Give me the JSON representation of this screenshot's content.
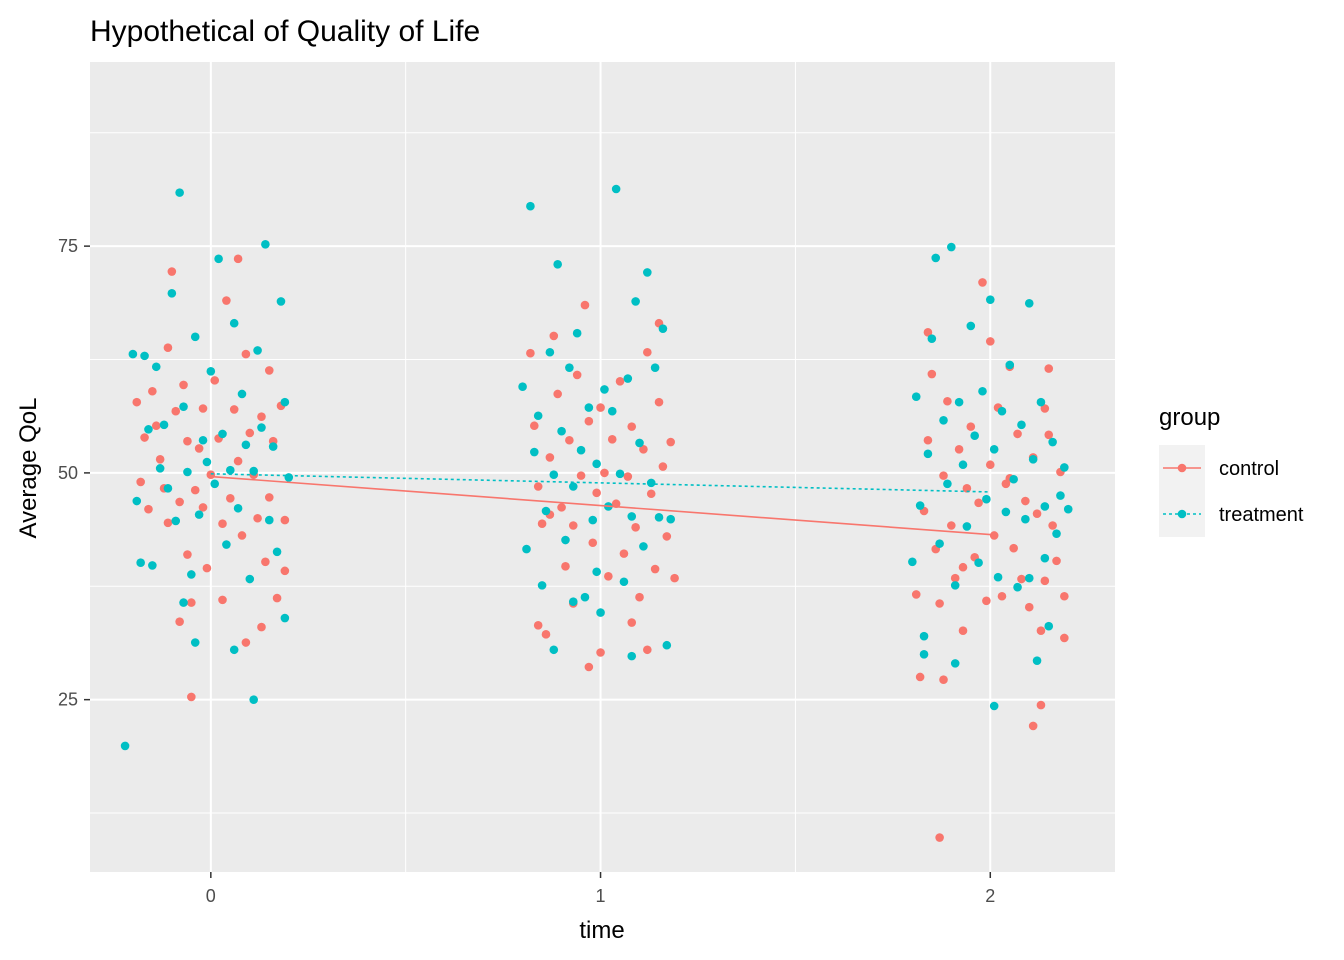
{
  "chart_data": {
    "type": "scatter",
    "title": "Hypothetical of Quality of Life",
    "xlabel": "time",
    "ylabel": "Average QoL",
    "xlim": [
      -0.31,
      2.32
    ],
    "ylim": [
      6,
      95.3
    ],
    "x_ticks": [
      0,
      1,
      2
    ],
    "x_tick_labels": [
      "0",
      "1",
      "2"
    ],
    "y_ticks": [
      25,
      50,
      75
    ],
    "y_tick_labels": [
      "25",
      "50",
      "75"
    ],
    "grid": true,
    "legend": {
      "title": "group",
      "position": "right"
    },
    "series": [
      {
        "name": "control",
        "color": "#F8766D",
        "line_style": "solid",
        "trend": {
          "x": [
            0,
            1,
            2
          ],
          "y": [
            49.6,
            46.4,
            43.2
          ]
        },
        "points": [
          [
            -0.19,
            57.8
          ],
          [
            -0.18,
            49
          ],
          [
            -0.17,
            53.9
          ],
          [
            -0.16,
            46
          ],
          [
            -0.15,
            59
          ],
          [
            -0.14,
            55.2
          ],
          [
            -0.13,
            51.5
          ],
          [
            -0.12,
            48.3
          ],
          [
            -0.11,
            44.5
          ],
          [
            -0.11,
            63.8
          ],
          [
            -0.1,
            72.2
          ],
          [
            -0.09,
            56.8
          ],
          [
            -0.08,
            46.8
          ],
          [
            -0.07,
            59.7
          ],
          [
            -0.06,
            53.5
          ],
          [
            -0.06,
            41
          ],
          [
            -0.05,
            35.7
          ],
          [
            -0.04,
            48.1
          ],
          [
            -0.03,
            52.7
          ],
          [
            -0.02,
            57.1
          ],
          [
            -0.02,
            46.2
          ],
          [
            -0.01,
            39.5
          ],
          [
            0,
            49.8
          ],
          [
            0.01,
            60.2
          ],
          [
            0.02,
            53.8
          ],
          [
            0.03,
            44.4
          ],
          [
            0.03,
            36
          ],
          [
            0.04,
            69
          ],
          [
            0.05,
            47.2
          ],
          [
            0.06,
            57
          ],
          [
            0.07,
            51.3
          ],
          [
            0.07,
            73.6
          ],
          [
            0.08,
            43.1
          ],
          [
            0.09,
            63.1
          ],
          [
            0.1,
            54.4
          ],
          [
            0.11,
            49.8
          ],
          [
            0.12,
            45
          ],
          [
            0.13,
            56.2
          ],
          [
            0.14,
            40.2
          ],
          [
            0.15,
            61.3
          ],
          [
            0.15,
            47.3
          ],
          [
            0.16,
            53.5
          ],
          [
            0.17,
            36.2
          ],
          [
            0.18,
            57.4
          ],
          [
            0.19,
            44.8
          ],
          [
            -0.05,
            25.3
          ],
          [
            -0.08,
            33.6
          ],
          [
            0.09,
            31.3
          ],
          [
            0.13,
            33
          ],
          [
            0.19,
            39.2
          ],
          [
            0.82,
            63.2
          ],
          [
            0.83,
            55.2
          ],
          [
            0.84,
            48.5
          ],
          [
            0.85,
            44.4
          ],
          [
            0.86,
            32.2
          ],
          [
            0.87,
            51.7
          ],
          [
            0.88,
            65.1
          ],
          [
            0.89,
            58.7
          ],
          [
            0.9,
            46.2
          ],
          [
            0.91,
            39.7
          ],
          [
            0.92,
            53.6
          ],
          [
            0.93,
            44.2
          ],
          [
            0.94,
            60.8
          ],
          [
            0.95,
            49.7
          ],
          [
            0.96,
            68.5
          ],
          [
            0.97,
            55.7
          ],
          [
            0.98,
            42.3
          ],
          [
            0.99,
            47.8
          ],
          [
            1,
            57.2
          ],
          [
            1.01,
            50
          ],
          [
            1.02,
            38.6
          ],
          [
            1.03,
            53.7
          ],
          [
            1.04,
            46.6
          ],
          [
            1.05,
            60.1
          ],
          [
            1.06,
            41.1
          ],
          [
            1.07,
            49.6
          ],
          [
            1.08,
            55.1
          ],
          [
            1.09,
            44
          ],
          [
            1.1,
            36.3
          ],
          [
            1.11,
            52.6
          ],
          [
            1.12,
            63.3
          ],
          [
            1.13,
            47.7
          ],
          [
            1.14,
            39.4
          ],
          [
            1.15,
            57.8
          ],
          [
            1.16,
            50.7
          ],
          [
            1.17,
            43
          ],
          [
            1.18,
            53.4
          ],
          [
            1.19,
            38.4
          ],
          [
            0.84,
            33.2
          ],
          [
            0.93,
            35.6
          ],
          [
            0.97,
            28.6
          ],
          [
            1,
            30.2
          ],
          [
            1.08,
            33.5
          ],
          [
            1.12,
            30.5
          ],
          [
            1.15,
            66.5
          ],
          [
            0.87,
            45.4
          ],
          [
            1.81,
            36.6
          ],
          [
            1.82,
            27.5
          ],
          [
            1.83,
            45.8
          ],
          [
            1.84,
            53.6
          ],
          [
            1.85,
            60.9
          ],
          [
            1.86,
            41.6
          ],
          [
            1.87,
            35.6
          ],
          [
            1.88,
            49.7
          ],
          [
            1.88,
            27.2
          ],
          [
            1.89,
            57.9
          ],
          [
            1.9,
            44.2
          ],
          [
            1.91,
            38.4
          ],
          [
            1.92,
            52.6
          ],
          [
            1.93,
            32.6
          ],
          [
            1.94,
            48.3
          ],
          [
            1.95,
            55.1
          ],
          [
            1.96,
            40.7
          ],
          [
            1.97,
            46.7
          ],
          [
            1.98,
            71
          ],
          [
            1.99,
            35.9
          ],
          [
            2,
            50.9
          ],
          [
            2,
            64.5
          ],
          [
            2.01,
            43.1
          ],
          [
            2.02,
            57.2
          ],
          [
            2.03,
            36.4
          ],
          [
            2.04,
            48.8
          ],
          [
            2.05,
            61.7
          ],
          [
            2.06,
            41.7
          ],
          [
            2.07,
            54.3
          ],
          [
            2.08,
            38.3
          ],
          [
            2.09,
            46.9
          ],
          [
            2.1,
            35.2
          ],
          [
            2.11,
            51.7
          ],
          [
            2.12,
            45.5
          ],
          [
            2.13,
            24.4
          ],
          [
            2.14,
            57.1
          ],
          [
            2.14,
            38.1
          ],
          [
            2.15,
            61.5
          ],
          [
            2.16,
            44.2
          ],
          [
            2.17,
            40.3
          ],
          [
            2.18,
            50.1
          ],
          [
            2.19,
            36.4
          ],
          [
            2.19,
            31.8
          ],
          [
            2.11,
            22.1
          ],
          [
            2.13,
            32.6
          ],
          [
            2.15,
            54.2
          ],
          [
            1.87,
            9.8
          ],
          [
            1.93,
            39.6
          ],
          [
            2.05,
            49.4
          ],
          [
            1.84,
            65.5
          ]
        ]
      },
      {
        "name": "treatment",
        "color": "#00BFC4",
        "line_style": "dotted",
        "trend": {
          "x": [
            0,
            1,
            2
          ],
          "y": [
            49.9,
            48.9,
            47.9
          ]
        },
        "points": [
          [
            -0.2,
            63.1
          ],
          [
            -0.19,
            46.9
          ],
          [
            -0.18,
            40.1
          ],
          [
            -0.17,
            62.9
          ],
          [
            -0.16,
            54.8
          ],
          [
            -0.15,
            39.8
          ],
          [
            -0.14,
            61.7
          ],
          [
            -0.13,
            50.5
          ],
          [
            -0.12,
            55.3
          ],
          [
            -0.11,
            48.3
          ],
          [
            -0.1,
            69.8
          ],
          [
            -0.09,
            44.7
          ],
          [
            -0.08,
            80.9
          ],
          [
            -0.07,
            57.3
          ],
          [
            -0.06,
            50.1
          ],
          [
            -0.05,
            38.8
          ],
          [
            -0.04,
            65
          ],
          [
            -0.03,
            45.4
          ],
          [
            -0.02,
            53.6
          ],
          [
            -0.01,
            51.2
          ],
          [
            0,
            61.2
          ],
          [
            0.01,
            48.8
          ],
          [
            0.02,
            73.6
          ],
          [
            0.03,
            54.3
          ],
          [
            0.04,
            42.1
          ],
          [
            0.05,
            50.3
          ],
          [
            0.06,
            66.5
          ],
          [
            0.07,
            46.1
          ],
          [
            0.08,
            58.7
          ],
          [
            0.09,
            53.1
          ],
          [
            0.1,
            38.3
          ],
          [
            0.11,
            50.2
          ],
          [
            0.12,
            63.5
          ],
          [
            0.13,
            55
          ],
          [
            0.14,
            75.2
          ],
          [
            0.15,
            44.8
          ],
          [
            0.16,
            52.9
          ],
          [
            0.17,
            41.3
          ],
          [
            0.18,
            68.9
          ],
          [
            0.19,
            57.8
          ],
          [
            0.2,
            49.5
          ],
          [
            -0.22,
            19.9
          ],
          [
            -0.04,
            31.3
          ],
          [
            0.11,
            25
          ],
          [
            0.06,
            30.5
          ],
          [
            0.19,
            34
          ],
          [
            -0.07,
            35.7
          ],
          [
            0.8,
            59.5
          ],
          [
            0.81,
            41.6
          ],
          [
            0.82,
            79.4
          ],
          [
            0.83,
            52.3
          ],
          [
            0.84,
            56.3
          ],
          [
            0.85,
            37.6
          ],
          [
            0.86,
            45.8
          ],
          [
            0.87,
            63.3
          ],
          [
            0.88,
            49.8
          ],
          [
            0.89,
            73
          ],
          [
            0.9,
            54.6
          ],
          [
            0.91,
            42.6
          ],
          [
            0.92,
            61.6
          ],
          [
            0.93,
            48.5
          ],
          [
            0.94,
            65.4
          ],
          [
            0.95,
            52.5
          ],
          [
            0.96,
            36.3
          ],
          [
            0.97,
            57.2
          ],
          [
            0.98,
            44.8
          ],
          [
            0.99,
            51
          ],
          [
            1,
            34.6
          ],
          [
            1.01,
            59.2
          ],
          [
            1.02,
            46.3
          ],
          [
            1.03,
            56.8
          ],
          [
            1.04,
            81.3
          ],
          [
            1.05,
            49.9
          ],
          [
            1.06,
            38
          ],
          [
            1.07,
            60.4
          ],
          [
            1.08,
            45.2
          ],
          [
            1.09,
            68.9
          ],
          [
            1.1,
            53.3
          ],
          [
            1.11,
            41.9
          ],
          [
            1.12,
            72.1
          ],
          [
            1.13,
            48.9
          ],
          [
            1.14,
            61.6
          ],
          [
            1.15,
            45.1
          ],
          [
            1.16,
            65.9
          ],
          [
            1.17,
            31
          ],
          [
            1.18,
            44.9
          ],
          [
            0.88,
            30.5
          ],
          [
            1.08,
            29.8
          ],
          [
            0.93,
            35.8
          ],
          [
            0.99,
            39.1
          ],
          [
            1.8,
            40.2
          ],
          [
            1.81,
            58.4
          ],
          [
            1.82,
            46.4
          ],
          [
            1.83,
            30
          ],
          [
            1.84,
            52.1
          ],
          [
            1.85,
            64.8
          ],
          [
            1.86,
            73.7
          ],
          [
            1.87,
            42.2
          ],
          [
            1.88,
            55.8
          ],
          [
            1.89,
            48.8
          ],
          [
            1.9,
            74.9
          ],
          [
            1.91,
            37.6
          ],
          [
            1.92,
            57.8
          ],
          [
            1.93,
            50.9
          ],
          [
            1.94,
            44.1
          ],
          [
            1.95,
            66.2
          ],
          [
            1.96,
            54.1
          ],
          [
            1.97,
            40.1
          ],
          [
            1.98,
            59
          ],
          [
            1.99,
            47.1
          ],
          [
            2,
            69.1
          ],
          [
            2.01,
            52.6
          ],
          [
            2.02,
            38.5
          ],
          [
            2.03,
            56.8
          ],
          [
            2.04,
            45.7
          ],
          [
            2.05,
            61.9
          ],
          [
            2.06,
            49.3
          ],
          [
            2.07,
            37.4
          ],
          [
            2.08,
            55.3
          ],
          [
            2.09,
            44.9
          ],
          [
            2.1,
            68.7
          ],
          [
            2.11,
            51.5
          ],
          [
            2.12,
            29.3
          ],
          [
            2.13,
            57.8
          ],
          [
            2.14,
            46.3
          ],
          [
            2.15,
            33.1
          ],
          [
            2.16,
            53.4
          ],
          [
            2.17,
            43.3
          ],
          [
            2.18,
            47.5
          ],
          [
            2.19,
            50.6
          ],
          [
            2.2,
            46
          ],
          [
            1.83,
            32
          ],
          [
            2.01,
            24.3
          ],
          [
            2.1,
            38.4
          ],
          [
            2.14,
            40.6
          ],
          [
            1.91,
            29
          ]
        ]
      }
    ]
  }
}
